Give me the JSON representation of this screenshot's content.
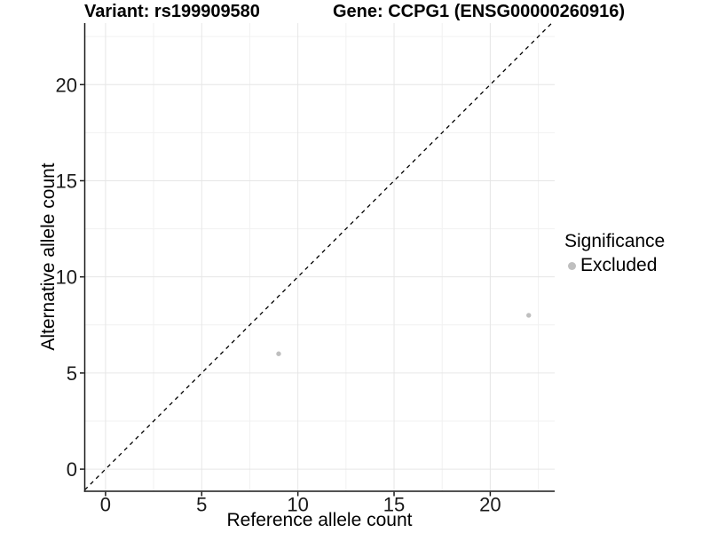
{
  "figure": {
    "title_variant": "Variant: rs199909580",
    "title_gene": "Gene: CCPG1 (ENSG00000260916)"
  },
  "chart_data": {
    "type": "scatter",
    "title": "Variant: rs199909580   Gene: CCPG1 (ENSG00000260916)",
    "xlabel": "Reference allele count",
    "ylabel": "Alternative allele count",
    "xlim": [
      -1.08,
      23.35
    ],
    "ylim": [
      -1.15,
      23.2
    ],
    "x_ticks": [
      0,
      5,
      10,
      15,
      20
    ],
    "y_ticks": [
      0,
      5,
      10,
      15,
      20
    ],
    "x_minor_ticks": [
      2.5,
      7.5,
      12.5,
      17.5,
      22.5
    ],
    "y_minor_ticks": [
      2.5,
      7.5,
      12.5,
      17.5,
      22.5
    ],
    "grid": "on",
    "identity_line": {
      "equation": "y = x",
      "style": "dashed",
      "color": "#000000"
    },
    "series": [
      {
        "name": "Excluded",
        "color": "#bfbfbf",
        "points": [
          [
            9,
            6
          ],
          [
            22,
            8
          ]
        ]
      }
    ],
    "legend": {
      "title": "Significance",
      "position": "right",
      "items": [
        {
          "label": "Excluded",
          "color": "#bfbfbf"
        }
      ]
    }
  },
  "colors": {
    "background": "#ffffff",
    "grid_major": "#e6e6e6",
    "grid_minor": "#f1f1f1",
    "axis_line": "#1a1a1a",
    "tick_text": "#1a1a1a",
    "point": "#bfbfbf"
  }
}
